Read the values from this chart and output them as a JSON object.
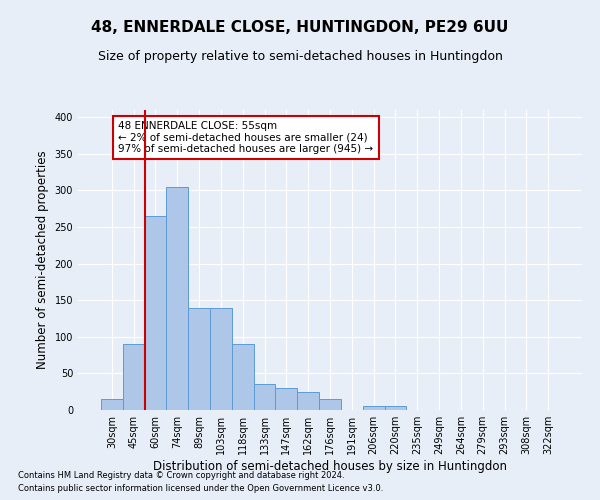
{
  "title": "48, ENNERDALE CLOSE, HUNTINGDON, PE29 6UU",
  "subtitle": "Size of property relative to semi-detached houses in Huntingdon",
  "xlabel": "Distribution of semi-detached houses by size in Huntingdon",
  "ylabel": "Number of semi-detached properties",
  "footer1": "Contains HM Land Registry data © Crown copyright and database right 2024.",
  "footer2": "Contains public sector information licensed under the Open Government Licence v3.0.",
  "categories": [
    "30sqm",
    "45sqm",
    "60sqm",
    "74sqm",
    "89sqm",
    "103sqm",
    "118sqm",
    "133sqm",
    "147sqm",
    "162sqm",
    "176sqm",
    "191sqm",
    "206sqm",
    "220sqm",
    "235sqm",
    "249sqm",
    "264sqm",
    "279sqm",
    "293sqm",
    "308sqm",
    "322sqm"
  ],
  "values": [
    15,
    90,
    265,
    305,
    140,
    140,
    90,
    35,
    30,
    25,
    15,
    0,
    5,
    5,
    0,
    0,
    0,
    0,
    0,
    0,
    0
  ],
  "bar_color": "#aec6e8",
  "bar_edge_color": "#5b9bd5",
  "vline_color": "#cc0000",
  "annotation_text": "48 ENNERDALE CLOSE: 55sqm\n← 2% of semi-detached houses are smaller (24)\n97% of semi-detached houses are larger (945) →",
  "annotation_box_color": "#ffffff",
  "annotation_box_edge": "#cc0000",
  "bg_color": "#e8eef7",
  "plot_bg_color": "#e8eef7",
  "grid_color": "#ffffff",
  "ylim": [
    0,
    410
  ],
  "yticks": [
    0,
    50,
    100,
    150,
    200,
    250,
    300,
    350,
    400
  ],
  "title_fontsize": 11,
  "subtitle_fontsize": 9,
  "xlabel_fontsize": 8.5,
  "ylabel_fontsize": 8.5,
  "tick_fontsize": 7,
  "ann_fontsize": 7.5
}
